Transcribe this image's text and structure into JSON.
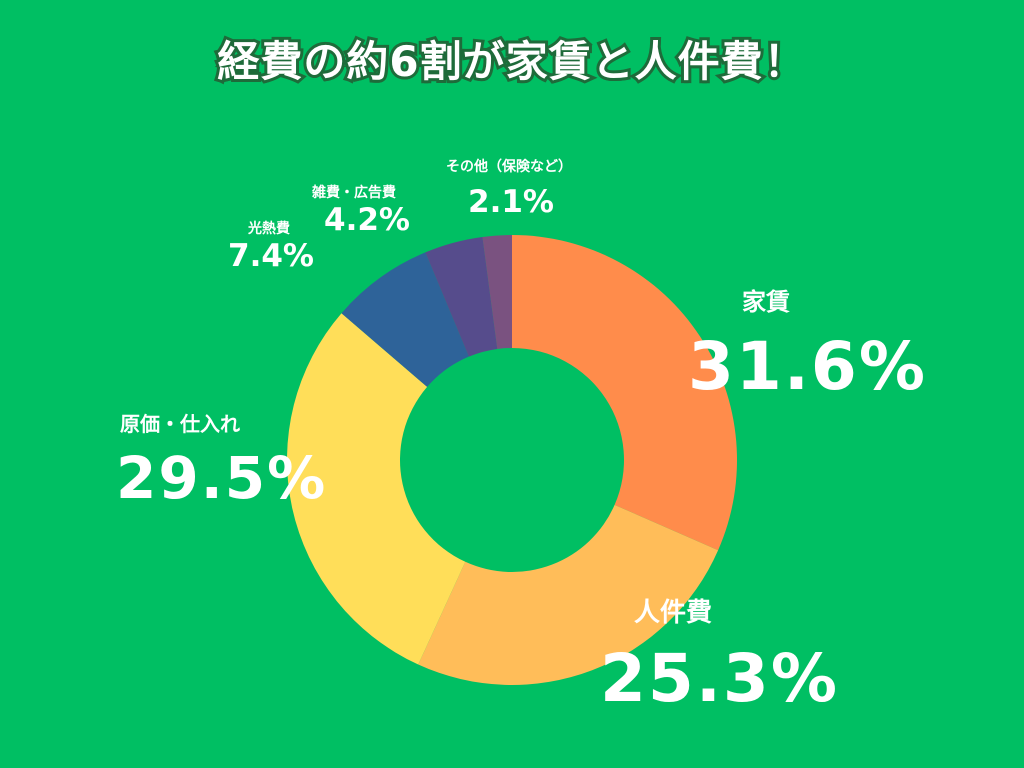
{
  "title": "経費の約6割が家賃と人件費！",
  "colors": {
    "background": "#00bf63",
    "title_outline": "#1e6b3a",
    "label_text": "#ffffff"
  },
  "chart_data": {
    "type": "pie",
    "donut": true,
    "title": "経費の約6割が家賃と人件費！",
    "start_angle_deg": 0,
    "direction": "clockwise",
    "legend": "none",
    "slices": [
      {
        "label": "家賃",
        "value": 31.6,
        "display": "31.6%",
        "color": "#ff8c4b"
      },
      {
        "label": "人件費",
        "value": 25.3,
        "display": "25.3%",
        "color": "#ffbd59"
      },
      {
        "label": "原価・仕入れ",
        "value": 29.5,
        "display": "29.5%",
        "color": "#ffde59"
      },
      {
        "label": "光熱費",
        "value": 7.4,
        "display": "7.4%",
        "color": "#2e6399"
      },
      {
        "label": "雑費・広告費",
        "value": 4.2,
        "display": "4.2%",
        "color": "#564c8c"
      },
      {
        "label": "その他（保険など）",
        "value": 2.1,
        "display": "2.1%",
        "color": "#7a5280"
      }
    ]
  }
}
